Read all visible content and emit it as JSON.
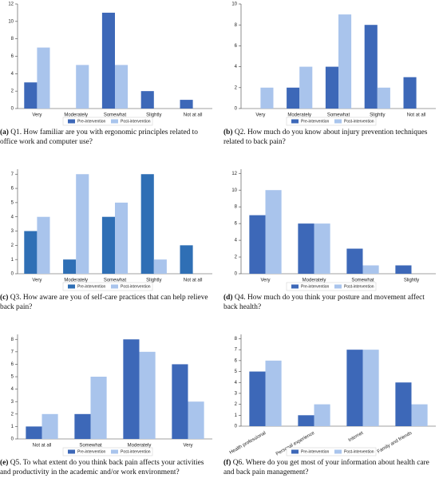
{
  "chart_data": [
    {
      "type": "bar",
      "caption_label": "(a)",
      "caption": "Q1. How familiar are you with ergonomic principles related to office work and computer use?",
      "categories": [
        "Very",
        "Moderately",
        "Somewhat",
        "Slightly",
        "Not at all"
      ],
      "series": [
        {
          "name": "Pre-intervention",
          "color": "#3d68b8",
          "values": [
            3,
            0,
            11,
            2,
            1
          ]
        },
        {
          "name": "Post-intervention",
          "color": "#a9c4ec",
          "values": [
            7,
            5,
            5,
            0,
            0
          ]
        }
      ],
      "ylim": [
        0,
        12
      ],
      "yticks": [
        0,
        2,
        4,
        6,
        8,
        10,
        12
      ]
    },
    {
      "type": "bar",
      "caption_label": "(b)",
      "caption": "Q2. How much do you know about injury prevention techniques related to back pain?",
      "categories": [
        "Very",
        "Moderately",
        "Somewhat",
        "Slightly",
        "Not at all"
      ],
      "series": [
        {
          "name": "Pre-intervention",
          "color": "#3d68b8",
          "values": [
            0,
            2,
            4,
            8,
            3
          ]
        },
        {
          "name": "Post-intervention",
          "color": "#a9c4ec",
          "values": [
            2,
            4,
            9,
            2,
            0
          ]
        }
      ],
      "ylim": [
        0,
        10
      ],
      "yticks": [
        0,
        2,
        4,
        6,
        8,
        10
      ]
    },
    {
      "type": "bar",
      "caption_label": "(c)",
      "caption": "Q3. How aware are you of self-care practices that can help relieve back pain?",
      "categories": [
        "Very",
        "Moderately",
        "Somewhat",
        "Slightly",
        "Not at all"
      ],
      "series": [
        {
          "name": "Pre-intervention",
          "color": "#2f6fb5",
          "values": [
            3,
            1,
            4,
            7,
            2
          ]
        },
        {
          "name": "Post-intervention",
          "color": "#a9c4ec",
          "values": [
            4,
            7,
            5,
            1,
            0
          ]
        }
      ],
      "ylim": [
        0,
        7.35
      ],
      "yticks": [
        0,
        1,
        2,
        3,
        4,
        5,
        6,
        7
      ]
    },
    {
      "type": "bar",
      "caption_label": "(d)",
      "caption": "Q4. How much do you think your posture and movement affect back health?",
      "categories": [
        "Very",
        "Moderately",
        "Somewhat",
        "Slightly"
      ],
      "series": [
        {
          "name": "Pre-intervention",
          "color": "#3d68b8",
          "values": [
            7,
            6,
            3,
            1
          ]
        },
        {
          "name": "Post-intervention",
          "color": "#a9c4ec",
          "values": [
            10,
            6,
            1,
            0
          ]
        }
      ],
      "ylim": [
        0,
        12.5
      ],
      "yticks": [
        0,
        2,
        4,
        6,
        8,
        10,
        12
      ]
    },
    {
      "type": "bar",
      "caption_label": "(e)",
      "caption": "Q5. To what extent do you think back pain affects your activities and productivity in the academic and/or work environment?",
      "categories": [
        "Not at all",
        "Somewhat",
        "Moderately",
        "Very"
      ],
      "series": [
        {
          "name": "Pre-intervention",
          "color": "#3d68b8",
          "values": [
            1,
            2,
            8,
            6
          ]
        },
        {
          "name": "Post-intervention",
          "color": "#a9c4ec",
          "values": [
            2,
            5,
            7,
            3
          ]
        }
      ],
      "ylim": [
        0,
        8.4
      ],
      "yticks": [
        0,
        1,
        2,
        3,
        4,
        5,
        6,
        7,
        8
      ]
    },
    {
      "type": "bar",
      "caption_label": "(f)",
      "caption": "Q6. Where do you get most of your information about health care and back pain management?",
      "categories": [
        "Health professional",
        "Personal experience",
        "Internet",
        "Family and friends"
      ],
      "series": [
        {
          "name": "Pre-intervention",
          "color": "#3d68b8",
          "values": [
            5,
            1,
            7,
            4
          ]
        },
        {
          "name": "Post-intervention",
          "color": "#a9c4ec",
          "values": [
            6,
            2,
            7,
            2
          ]
        }
      ],
      "ylim": [
        0,
        8.4
      ],
      "yticks": [
        0,
        1,
        2,
        3,
        4,
        5,
        6,
        7,
        8
      ],
      "xtick_rotation": 30
    }
  ]
}
